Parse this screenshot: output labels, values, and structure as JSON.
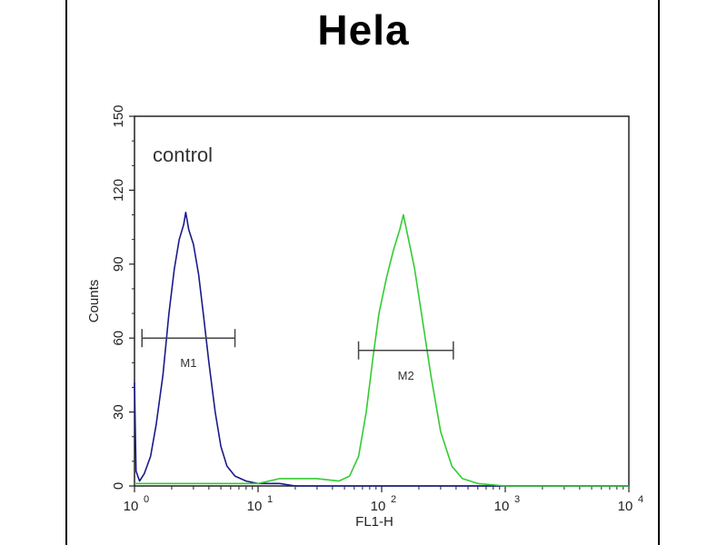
{
  "chart_data": {
    "type": "line",
    "title": "Hela",
    "xlabel": "FL1-H",
    "ylabel": "Counts",
    "x_scale": "log",
    "xlim": [
      1,
      10000
    ],
    "ylim": [
      0,
      150
    ],
    "y_ticks": [
      0,
      30,
      60,
      90,
      120,
      150
    ],
    "x_ticks": [
      {
        "value": 1,
        "base": "10",
        "exp": "0"
      },
      {
        "value": 10,
        "base": "10",
        "exp": "1"
      },
      {
        "value": 100,
        "base": "10",
        "exp": "2"
      },
      {
        "value": 1000,
        "base": "10",
        "exp": "3"
      },
      {
        "value": 10000,
        "base": "10",
        "exp": "4"
      }
    ],
    "annotation": "control",
    "series": [
      {
        "color": "#1a1a8c",
        "points": [
          [
            1,
            42
          ],
          [
            1.03,
            6
          ],
          [
            1.1,
            2
          ],
          [
            1.2,
            5
          ],
          [
            1.35,
            12
          ],
          [
            1.5,
            25
          ],
          [
            1.7,
            45
          ],
          [
            1.9,
            70
          ],
          [
            2.1,
            88
          ],
          [
            2.3,
            100
          ],
          [
            2.5,
            106
          ],
          [
            2.6,
            111
          ],
          [
            2.75,
            104
          ],
          [
            3.0,
            98
          ],
          [
            3.3,
            86
          ],
          [
            3.6,
            70
          ],
          [
            4.0,
            50
          ],
          [
            4.5,
            30
          ],
          [
            5.0,
            16
          ],
          [
            5.6,
            8
          ],
          [
            6.5,
            4
          ],
          [
            8,
            2
          ],
          [
            10,
            1
          ],
          [
            15,
            1
          ],
          [
            20,
            0
          ],
          [
            50,
            0
          ],
          [
            100,
            0
          ],
          [
            200,
            0
          ],
          [
            400,
            0
          ],
          [
            10000,
            0
          ]
        ]
      },
      {
        "color": "#33cc33",
        "points": [
          [
            1,
            1
          ],
          [
            5,
            1
          ],
          [
            10,
            1
          ],
          [
            15,
            3
          ],
          [
            20,
            3
          ],
          [
            30,
            3
          ],
          [
            45,
            2
          ],
          [
            55,
            4
          ],
          [
            65,
            12
          ],
          [
            75,
            30
          ],
          [
            85,
            52
          ],
          [
            95,
            70
          ],
          [
            110,
            85
          ],
          [
            125,
            96
          ],
          [
            140,
            104
          ],
          [
            150,
            110
          ],
          [
            165,
            100
          ],
          [
            185,
            88
          ],
          [
            210,
            70
          ],
          [
            250,
            45
          ],
          [
            300,
            22
          ],
          [
            370,
            8
          ],
          [
            450,
            3
          ],
          [
            600,
            1
          ],
          [
            1000,
            0
          ],
          [
            10000,
            0
          ]
        ]
      }
    ],
    "gates": [
      {
        "label": "M1",
        "x_start": 1.15,
        "x_end": 6.5,
        "y": 60
      },
      {
        "label": "M2",
        "x_start": 65,
        "x_end": 380,
        "y": 55
      }
    ]
  }
}
